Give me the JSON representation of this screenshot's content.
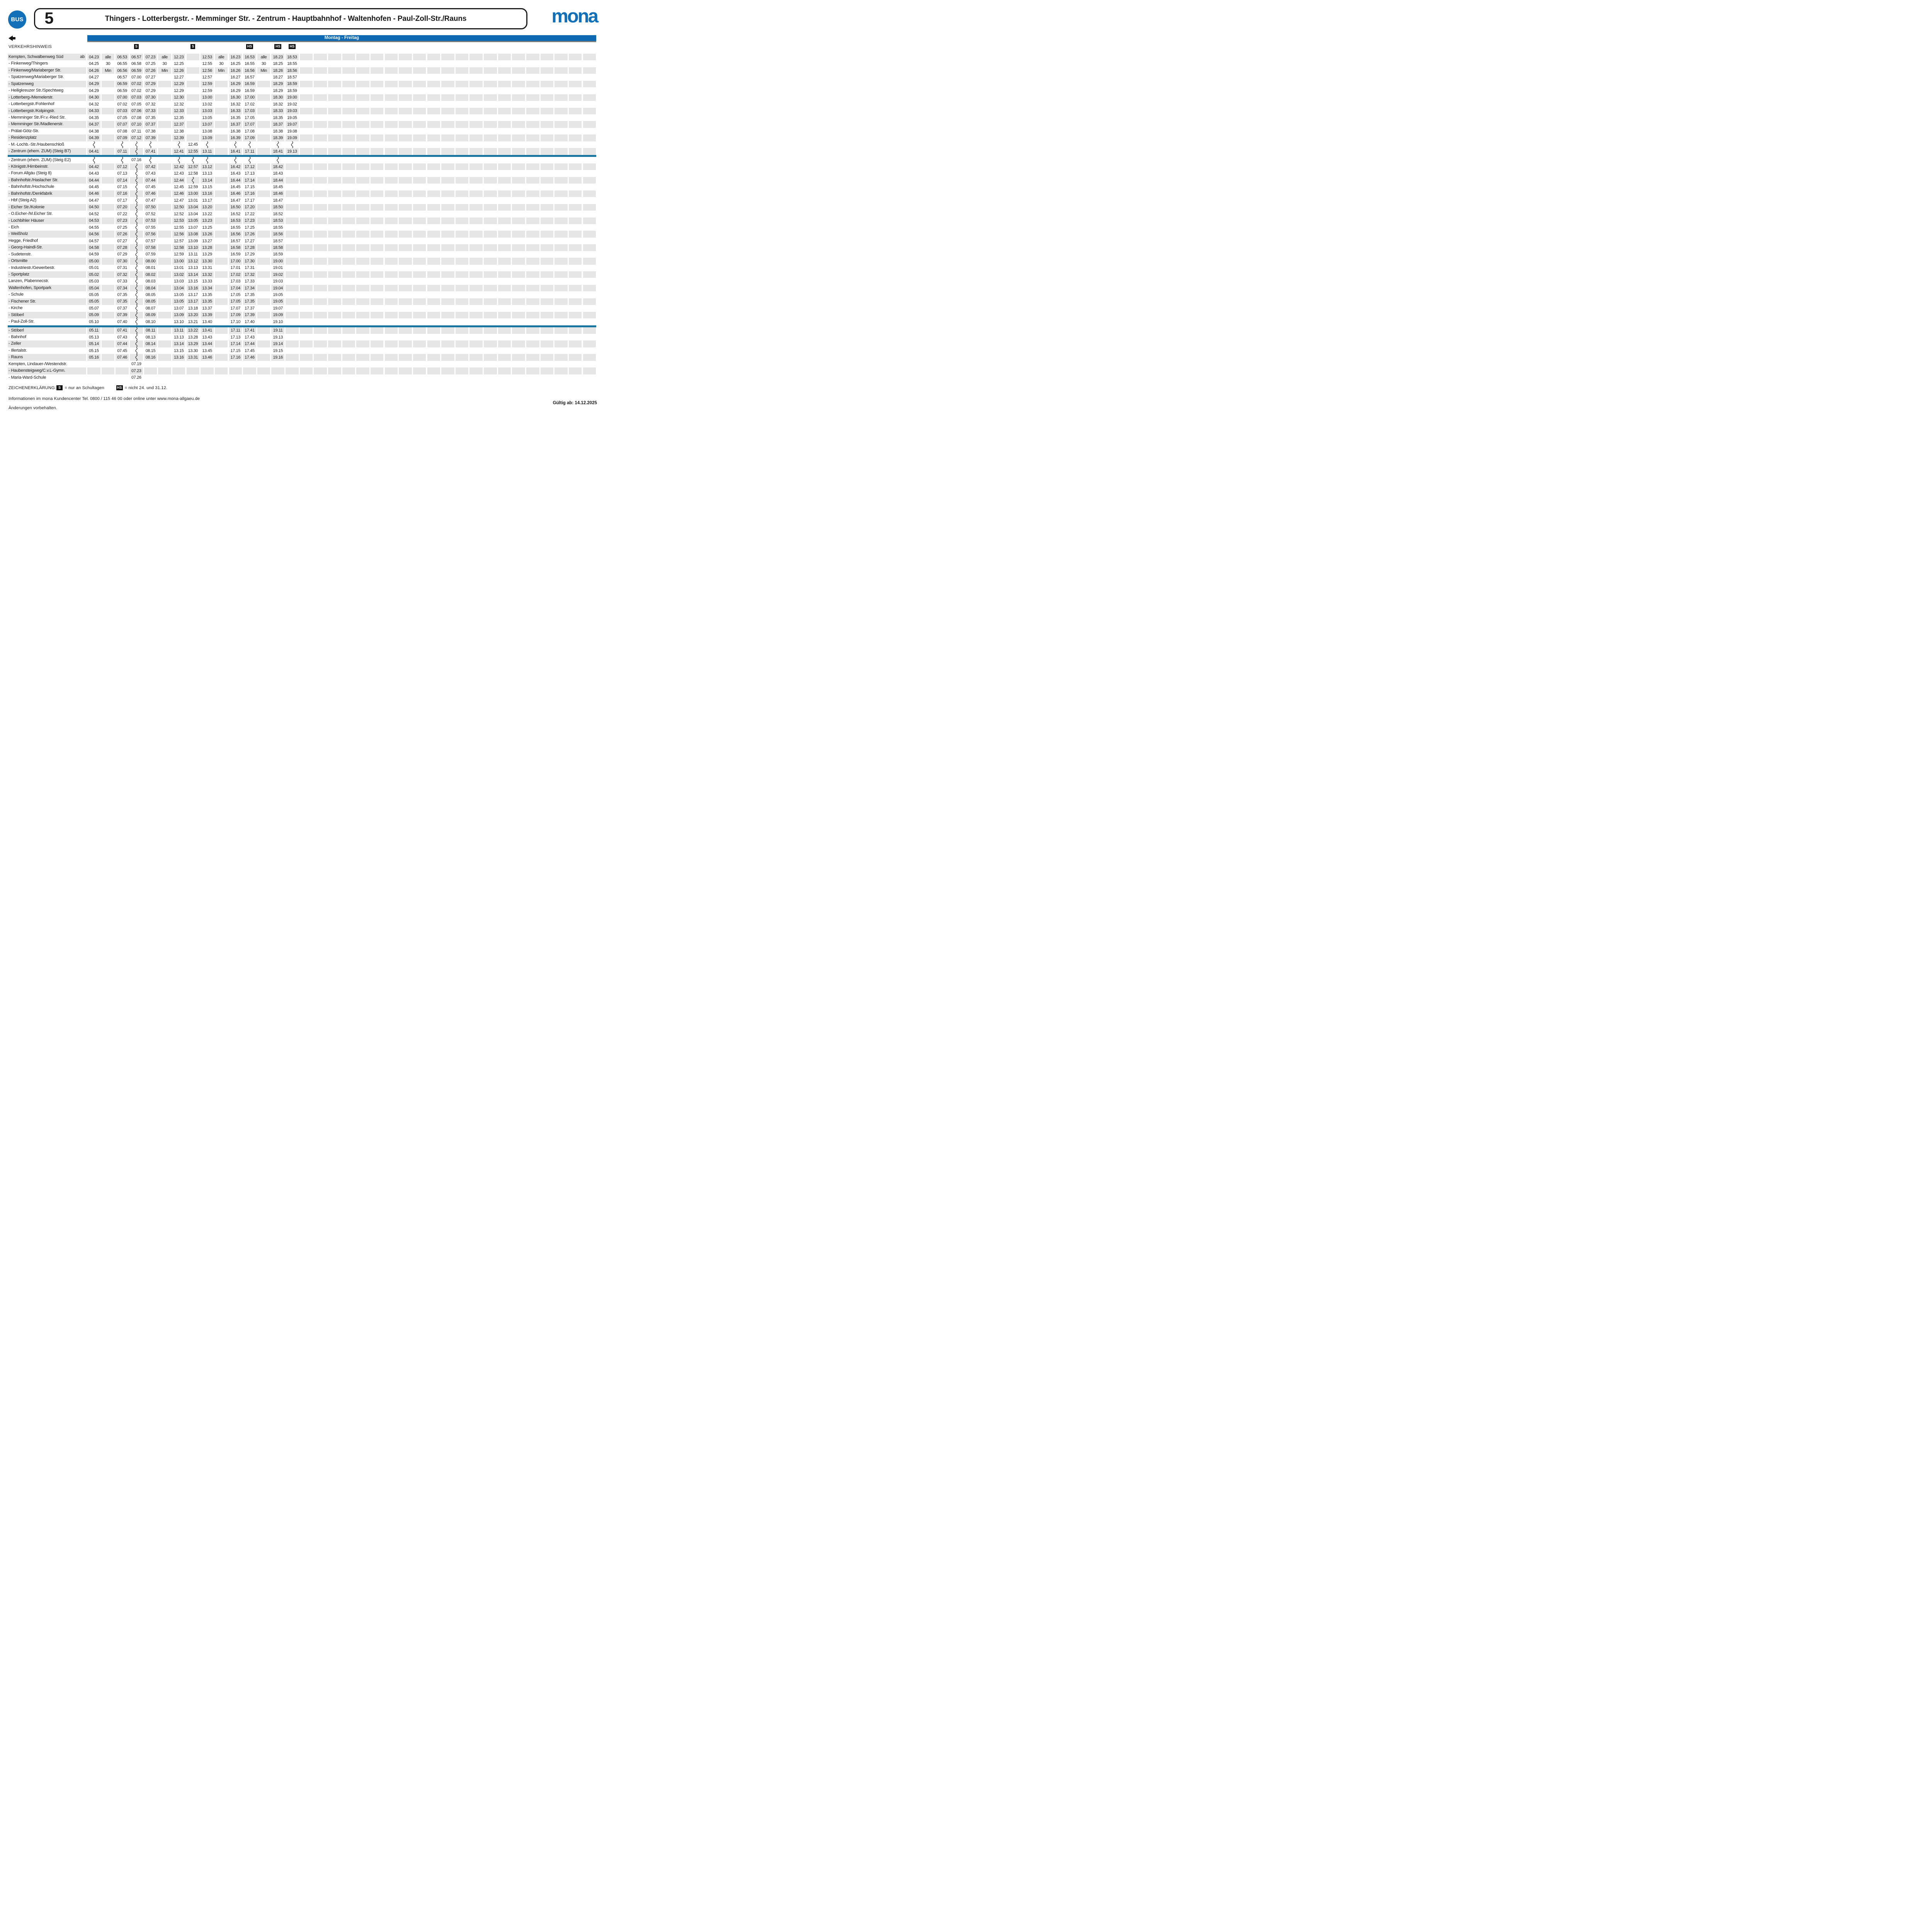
{
  "header": {
    "bus_badge": "BUS",
    "line_number": "5",
    "title": "Thingers - Lotterbergstr. - Memminger Str. - Zentrum - Hauptbahnhof - Waltenhofen - Paul-Zoll-Str./Rauns",
    "brand": "mona"
  },
  "day_bar": {
    "label": "Montag - Freitag"
  },
  "hint_row": {
    "label": "VERKEHRSHINWEIS",
    "markers": [
      {
        "col": 4,
        "label": "S"
      },
      {
        "col": 8,
        "label": "S"
      },
      {
        "col": 12,
        "label": "HS"
      },
      {
        "col": 14,
        "label": "HS"
      },
      {
        "col": 15,
        "label": "HS"
      }
    ]
  },
  "table": {
    "ab_label": "ab",
    "data_columns": 15,
    "total_columns": 36,
    "rows": [
      {
        "name": "Kempten, Schwalbenweg Süd",
        "ab": true,
        "cells": [
          "04.23",
          "alle",
          "06.53",
          "06.57",
          "07.23",
          "alle",
          "12.23",
          "",
          "12.53",
          "alle",
          "16.23",
          "16.53",
          "alle",
          "18.23",
          "18.53"
        ]
      },
      {
        "name": "- Finkenweg/Thingers",
        "cells": [
          "04.25",
          "30",
          "06.55",
          "06.58",
          "07.25",
          "30",
          "12.25",
          "",
          "12.55",
          "30",
          "16.25",
          "16.55",
          "30",
          "18.25",
          "18.55"
        ]
      },
      {
        "name": "- Finkenweg/Mariaberger Str.",
        "cells": [
          "04.26",
          "Min",
          "06.56",
          "06.59",
          "07.26",
          "Min",
          "12.26",
          "",
          "12.56",
          "Min",
          "16.26",
          "16.56",
          "Min",
          "18.26",
          "18.56"
        ]
      },
      {
        "name": "- Spatzenweg/Mariaberger Str.",
        "cells": [
          "04.27",
          "",
          "06.57",
          "07.00",
          "07.27",
          "",
          "12.27",
          "",
          "12.57",
          "",
          "16.27",
          "16.57",
          "",
          "18.27",
          "18.57"
        ]
      },
      {
        "name": "- Spatzenweg",
        "cells": [
          "04.29",
          "",
          "06.59",
          "07.02",
          "07.29",
          "",
          "12.29",
          "",
          "12.59",
          "",
          "16.29",
          "16.59",
          "",
          "18.29",
          "18.59"
        ]
      },
      {
        "name": "- Heiligkreuzer Str./Spechtweg",
        "cells": [
          "04.29",
          "",
          "06.59",
          "07.02",
          "07.29",
          "",
          "12.29",
          "",
          "12.59",
          "",
          "16.29",
          "16.59",
          "",
          "18.29",
          "18.59"
        ]
      },
      {
        "name": "- Lotterberg-/Memelerstr.",
        "cells": [
          "04.30",
          "",
          "07.00",
          "07.03",
          "07.30",
          "",
          "12.30",
          "",
          "13.00",
          "",
          "16.30",
          "17.00",
          "",
          "18.30",
          "19.00"
        ]
      },
      {
        "name": "- Lotterbergstr./Fohlenhof",
        "cells": [
          "04.32",
          "",
          "07.02",
          "07.05",
          "07.32",
          "",
          "12.32",
          "",
          "13.02",
          "",
          "16.32",
          "17.02",
          "",
          "18.32",
          "19.02"
        ]
      },
      {
        "name": "- Lotterbergstr./Kolpingstr.",
        "cells": [
          "04.33",
          "",
          "07.03",
          "07.06",
          "07.33",
          "",
          "12.33",
          "",
          "13.03",
          "",
          "16.33",
          "17.03",
          "",
          "18.33",
          "19.03"
        ]
      },
      {
        "name": "- Memminger Str./Fr.v.-Ried Str.",
        "cells": [
          "04.35",
          "",
          "07.05",
          "07.08",
          "07.35",
          "",
          "12.35",
          "",
          "13.05",
          "",
          "16.35",
          "17.05",
          "",
          "18.35",
          "19.05"
        ]
      },
      {
        "name": "- Memminger Str./Madlenerstr.",
        "cells": [
          "04.37",
          "",
          "07.07",
          "07.10",
          "07.37",
          "",
          "12.37",
          "",
          "13.07",
          "",
          "16.37",
          "17.07",
          "",
          "18.37",
          "19.07"
        ]
      },
      {
        "name": "- Prälat-Götz-Str.",
        "cells": [
          "04.38",
          "",
          "07.08",
          "07.11",
          "07.38",
          "",
          "12.38",
          "",
          "13.08",
          "",
          "16.38",
          "17.08",
          "",
          "18.38",
          "19.08"
        ]
      },
      {
        "name": "- Residenzplatz",
        "cells": [
          "04.39",
          "",
          "07.09",
          "07.12",
          "07.39",
          "",
          "12.39",
          "",
          "13.09",
          "",
          "16.39",
          "17.09",
          "",
          "18.39",
          "19.09"
        ]
      },
      {
        "name": "- M.-Lochb.-Str./Haubenschloß",
        "cells": [
          "~",
          "",
          "~",
          "~",
          "~",
          "",
          "~",
          "12.45",
          "~",
          "",
          "~",
          "~",
          "",
          "~",
          "~"
        ]
      },
      {
        "name": "- Zentrum (ehem. ZUM) (Steig B7)",
        "cells": [
          "04.41",
          "",
          "07.11",
          "~",
          "07.41",
          "",
          "12.41",
          "12.55",
          "13.11",
          "",
          "16.41",
          "17.11",
          "",
          "18.41",
          "19.13"
        ]
      },
      {
        "separator": true
      },
      {
        "name": "- Zentrum (ehem. ZUM) (Steig E2)",
        "cells": [
          "~",
          "",
          "~",
          "07.16",
          "~",
          "",
          "~",
          "~",
          "~",
          "",
          "~",
          "~",
          "",
          "~",
          ""
        ]
      },
      {
        "name": "- Königstr./Hirnbeinstr.",
        "cells": [
          "04.42",
          "",
          "07.12",
          "~",
          "07.42",
          "",
          "12.42",
          "12.57",
          "13.12",
          "",
          "16.42",
          "17.12",
          "",
          "18.42",
          ""
        ]
      },
      {
        "name": "- Forum Allgäu (Steig 8)",
        "cells": [
          "04.43",
          "",
          "07.13",
          "~",
          "07.43",
          "",
          "12.43",
          "12.58",
          "13.13",
          "",
          "16.43",
          "17.13",
          "",
          "18.43",
          ""
        ]
      },
      {
        "name": "- Bahnhofstr./Haslacher Str.",
        "cells": [
          "04.44",
          "",
          "07.14",
          "~",
          "07.44",
          "",
          "12.44",
          "~",
          "13.14",
          "",
          "16.44",
          "17.14",
          "",
          "18.44",
          ""
        ]
      },
      {
        "name": "- Bahnhofstr./Hochschule",
        "cells": [
          "04.45",
          "",
          "07.15",
          "~",
          "07.45",
          "",
          "12.45",
          "12.59",
          "13.15",
          "",
          "16.45",
          "17.15",
          "",
          "18.45",
          ""
        ]
      },
      {
        "name": "- Bahnhofstr./Denkfabrik",
        "cells": [
          "04.46",
          "",
          "07.16",
          "~",
          "07.46",
          "",
          "12.46",
          "13.00",
          "13.16",
          "",
          "16.46",
          "17.16",
          "",
          "18.46",
          ""
        ]
      },
      {
        "name": "- Hbf (Steig A2)",
        "cells": [
          "04.47",
          "",
          "07.17",
          "~",
          "07.47",
          "",
          "12.47",
          "13.01",
          "13.17",
          "",
          "16.47",
          "17.17",
          "",
          "18.47",
          ""
        ]
      },
      {
        "name": "- Eicher Str./Kolonie",
        "cells": [
          "04.50",
          "",
          "07.20",
          "~",
          "07.50",
          "",
          "12.50",
          "13.04",
          "13.20",
          "",
          "16.50",
          "17.20",
          "",
          "18.50",
          ""
        ]
      },
      {
        "name": "- O.Eicher-/M.Eicher Str.",
        "cells": [
          "04.52",
          "",
          "07.22",
          "~",
          "07.52",
          "",
          "12.52",
          "13.04",
          "13.22",
          "",
          "16.52",
          "17.22",
          "",
          "18.52",
          ""
        ]
      },
      {
        "name": "- Lochbihler Häuser",
        "cells": [
          "04.53",
          "",
          "07.23",
          "~",
          "07.53",
          "",
          "12.53",
          "13.05",
          "13.23",
          "",
          "16.53",
          "17.23",
          "",
          "18.53",
          ""
        ]
      },
      {
        "name": "- Eich",
        "cells": [
          "04.55",
          "",
          "07.25",
          "~",
          "07.55",
          "",
          "12.55",
          "13.07",
          "13.25",
          "",
          "16.55",
          "17.25",
          "",
          "18.55",
          ""
        ]
      },
      {
        "name": "- Weißholz",
        "cells": [
          "04.56",
          "",
          "07.26",
          "~",
          "07.56",
          "",
          "12.56",
          "13.08",
          "13.26",
          "",
          "16.56",
          "17.26",
          "",
          "18.56",
          ""
        ]
      },
      {
        "name": "Hegge, Friedhof",
        "cells": [
          "04.57",
          "",
          "07.27",
          "~",
          "07.57",
          "",
          "12.57",
          "13.09",
          "13.27",
          "",
          "16.57",
          "17.27",
          "",
          "18.57",
          ""
        ]
      },
      {
        "name": "- Georg-Haindl-Str.",
        "cells": [
          "04.58",
          "",
          "07.28",
          "~",
          "07.58",
          "",
          "12.58",
          "13.10",
          "13.28",
          "",
          "16.58",
          "17.28",
          "",
          "18.58",
          ""
        ]
      },
      {
        "name": "- Sudetenstr.",
        "cells": [
          "04.59",
          "",
          "07.29",
          "~",
          "07.59",
          "",
          "12.59",
          "13.11",
          "13.29",
          "",
          "16.59",
          "17.29",
          "",
          "18.59",
          ""
        ]
      },
      {
        "name": "- Ortsmitte",
        "cells": [
          "05.00",
          "",
          "07.30",
          "~",
          "08.00",
          "",
          "13.00",
          "13.12",
          "13.30",
          "",
          "17.00",
          "17.30",
          "",
          "19.00",
          ""
        ]
      },
      {
        "name": "- Industriestr./Gewerbestr.",
        "cells": [
          "05.01",
          "",
          "07.31",
          "~",
          "08.01",
          "",
          "13.01",
          "13.13",
          "13.31",
          "",
          "17.01",
          "17.31",
          "",
          "19.01",
          ""
        ]
      },
      {
        "name": "- Sportplatz",
        "cells": [
          "05.02",
          "",
          "07.32",
          "~",
          "08.02",
          "",
          "13.02",
          "13.14",
          "13.32",
          "",
          "17.02",
          "17.32",
          "",
          "19.02",
          ""
        ]
      },
      {
        "name": "Lanzen, Plabennecstr.",
        "cells": [
          "05.03",
          "",
          "07.33",
          "~",
          "08.03",
          "",
          "13.03",
          "13.15",
          "13.33",
          "",
          "17.03",
          "17.33",
          "",
          "19.03",
          ""
        ]
      },
      {
        "name": "Waltenhofen, Sportpark",
        "cells": [
          "05.04",
          "",
          "07.34",
          "~",
          "08.04",
          "",
          "13.04",
          "13.16",
          "13.34",
          "",
          "17.04",
          "17.34",
          "",
          "19.04",
          ""
        ]
      },
      {
        "name": "- Schule",
        "cells": [
          "05.05",
          "",
          "07.35",
          "~",
          "08.05",
          "",
          "13.05",
          "13.17",
          "13.35",
          "",
          "17.05",
          "17.35",
          "",
          "19.05",
          ""
        ]
      },
      {
        "name": "- Fischener Str.",
        "cells": [
          "05.05",
          "",
          "07.35",
          "~",
          "08.05",
          "",
          "13.05",
          "13.17",
          "13.35",
          "",
          "17.05",
          "17.35",
          "",
          "19.05",
          ""
        ]
      },
      {
        "name": "- Kirche",
        "cells": [
          "05.07",
          "",
          "07.37",
          "~",
          "08.07",
          "",
          "13.07",
          "13.18",
          "13.37",
          "",
          "17.07",
          "17.37",
          "",
          "19.07",
          ""
        ]
      },
      {
        "name": "- Stöberl",
        "cells": [
          "05.09",
          "",
          "07.39",
          "~",
          "08.09",
          "",
          "13.09",
          "13.20",
          "13.39",
          "",
          "17.09",
          "17.39",
          "",
          "19.09",
          ""
        ]
      },
      {
        "name": "- Paul-Zoll-Str.",
        "cells": [
          "05.10",
          "",
          "07.40",
          "~",
          "08.10",
          "",
          "13.10",
          "13.21",
          "13.40",
          "",
          "17.10",
          "17.40",
          "",
          "19.10",
          ""
        ]
      },
      {
        "separator": true
      },
      {
        "name": "- Stöberl",
        "cells": [
          "05.11",
          "",
          "07.41",
          "~",
          "08.11",
          "",
          "13.11",
          "13.22",
          "13.41",
          "",
          "17.11",
          "17.41",
          "",
          "19.11",
          ""
        ]
      },
      {
        "name": "- Bahnhof",
        "cells": [
          "05.13",
          "",
          "07.43",
          "~",
          "08.13",
          "",
          "13.13",
          "13.28",
          "13.43",
          "",
          "17.13",
          "17.43",
          "",
          "19.13",
          ""
        ]
      },
      {
        "name": "- Zeller",
        "cells": [
          "05.14",
          "",
          "07.44",
          "~",
          "08.14",
          "",
          "13.14",
          "13.29",
          "13.44",
          "",
          "17.14",
          "17.44",
          "",
          "19.14",
          ""
        ]
      },
      {
        "name": "- Illertalstr.",
        "cells": [
          "05.15",
          "",
          "07.45",
          "~",
          "08.15",
          "",
          "13.15",
          "13.30",
          "13.45",
          "",
          "17.15",
          "17.45",
          "",
          "19.15",
          ""
        ]
      },
      {
        "name": "- Rauns",
        "cells": [
          "05.16",
          "",
          "07.46",
          "~",
          "08.16",
          "",
          "13.16",
          "13.31",
          "13.46",
          "",
          "17.16",
          "17.46",
          "",
          "19.16",
          ""
        ]
      },
      {
        "name": "Kempten, Lindauer-/Westendstr.",
        "cells": [
          "",
          "",
          "",
          "07.19",
          "",
          "",
          "",
          "",
          "",
          "",
          "",
          "",
          "",
          "",
          ""
        ]
      },
      {
        "name": "- Haubensteigweg/C.v.L-Gymn.",
        "cells": [
          "",
          "",
          "",
          "07.23",
          "",
          "",
          "",
          "",
          "",
          "",
          "",
          "",
          "",
          "",
          ""
        ]
      },
      {
        "name": "- Maria-Ward-Schule",
        "cells": [
          "",
          "",
          "",
          "07.26",
          "",
          "",
          "",
          "",
          "",
          "",
          "",
          "",
          "",
          "",
          ""
        ]
      }
    ]
  },
  "legend": {
    "title": "ZEICHENERKLÄRUNG:",
    "items": [
      {
        "symbol": "S",
        "text": "= nur an Schultagen"
      },
      {
        "symbol": "HS",
        "text": "= nicht 24. und 31.12."
      }
    ]
  },
  "footer": {
    "info": "Informationen im mona Kundencenter Tel. 0800 / 115 46 00 oder online unter www.mona-allgaeu.de",
    "note": "Änderungen vorbehalten.",
    "valid": "Gültig ab: 14.12.2025"
  },
  "colors": {
    "bar_blue": "#0c69b2",
    "logo_blue": "#1170b8",
    "separator_blue": "#1a76a0",
    "row_gray": "#e6e6e6"
  }
}
